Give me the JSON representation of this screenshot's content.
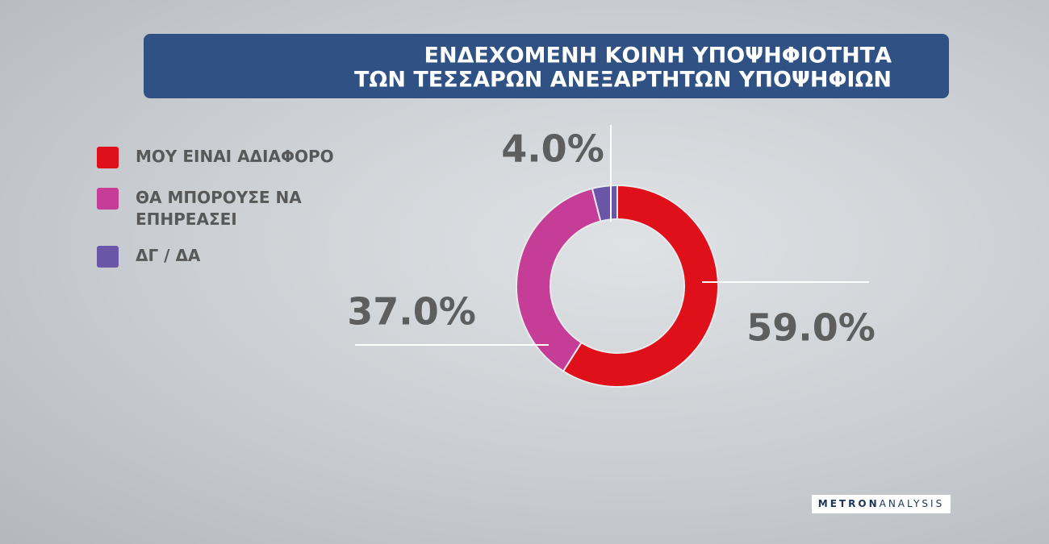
{
  "chart_data": {
    "type": "donut",
    "title": [
      "ΕΝΔΕΧΟΜΕΝΗ ΚΟΙΝΗ ΥΠΟΨΗΦΙΟΤΗΤΑ",
      "ΤΩΝ ΤΕΣΣΑΡΩΝ ΑΝΕΞΑΡΤΗΤΩΝ ΥΠΟΨΗΦΙΩΝ"
    ],
    "categories": [
      "ΜΟΥ ΕΙΝΑΙ ΑΔΙΑΦΟΡΟ",
      "ΘΑ ΜΠΟΡΟΥΣΕ ΝΑ ΕΠΗΡΕΑΣΕΙ",
      "ΔΓ / ΔΑ"
    ],
    "values": [
      59.0,
      37.0,
      4.0
    ],
    "value_labels": [
      "59.0%",
      "37.0%",
      "4.0%"
    ],
    "colors": [
      "#e0101a",
      "#c63d97",
      "#6a55a6"
    ],
    "legend": "top-left"
  },
  "branding": {
    "logo": [
      "METRON",
      "ANALYSIS"
    ]
  }
}
